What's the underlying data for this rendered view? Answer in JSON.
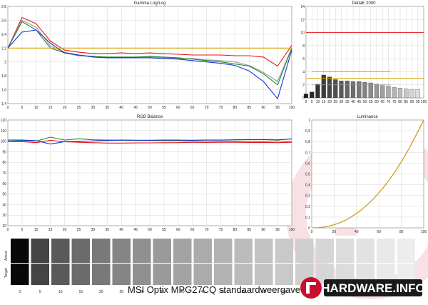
{
  "footer": {
    "title": "MSI Optix MPG27CQ standaardweergave",
    "brand": "HARDWARE.INFO"
  },
  "colors": {
    "red": "#e8141b",
    "green": "#1e8a2a",
    "blue": "#1a34d8",
    "gray": "#9a9a9a",
    "gold": "#d4a000",
    "brand_red": "#c8102e"
  },
  "chart_data": [
    {
      "type": "line",
      "title": "Gamma Log/Log",
      "x": [
        0,
        5,
        10,
        15,
        20,
        25,
        30,
        35,
        40,
        45,
        50,
        55,
        60,
        65,
        70,
        75,
        80,
        85,
        90,
        95,
        100
      ],
      "xticks": [
        0,
        5,
        10,
        15,
        20,
        25,
        30,
        35,
        40,
        45,
        50,
        55,
        60,
        65,
        70,
        75,
        80,
        85,
        90,
        95,
        100
      ],
      "ylim": [
        1.4,
        2.8
      ],
      "yticks": [
        "1,4",
        "1,6",
        "1,8",
        "2",
        "2,2",
        "2,4",
        "2,6",
        "2,8"
      ],
      "grid": true,
      "series": [
        {
          "color": "red",
          "values": [
            2.2,
            2.64,
            2.55,
            2.3,
            2.17,
            2.14,
            2.12,
            2.12,
            2.13,
            2.12,
            2.13,
            2.12,
            2.11,
            2.1,
            2.1,
            2.1,
            2.09,
            2.09,
            2.07,
            1.94,
            2.24
          ]
        },
        {
          "color": "gray",
          "values": [
            2.2,
            2.6,
            2.5,
            2.23,
            2.14,
            2.1,
            2.08,
            2.07,
            2.07,
            2.07,
            2.07,
            2.06,
            2.05,
            2.05,
            2.03,
            2.02,
            2.0,
            1.95,
            1.85,
            1.72,
            2.2
          ]
        },
        {
          "color": "green",
          "values": [
            2.2,
            2.58,
            2.46,
            2.2,
            2.13,
            2.09,
            2.08,
            2.07,
            2.07,
            2.07,
            2.08,
            2.07,
            2.06,
            2.04,
            2.02,
            2.0,
            1.97,
            1.94,
            1.83,
            1.67,
            2.2
          ]
        },
        {
          "color": "blue",
          "values": [
            2.2,
            2.43,
            2.46,
            2.27,
            2.13,
            2.1,
            2.07,
            2.06,
            2.06,
            2.06,
            2.06,
            2.05,
            2.04,
            2.02,
            2.0,
            1.98,
            1.95,
            1.87,
            1.72,
            1.47,
            2.17
          ]
        },
        {
          "color": "gold",
          "values": [
            2.2,
            2.2,
            2.2,
            2.2,
            2.2,
            2.2,
            2.2,
            2.2,
            2.2,
            2.2,
            2.2,
            2.2,
            2.2,
            2.2,
            2.2,
            2.2,
            2.2,
            2.2,
            2.2,
            2.2,
            2.2
          ]
        }
      ]
    },
    {
      "type": "bar",
      "title": "DeltaE 2000",
      "categories": [
        0,
        5,
        10,
        15,
        20,
        25,
        30,
        35,
        40,
        45,
        50,
        55,
        60,
        65,
        70,
        75,
        80,
        85,
        90,
        95,
        100
      ],
      "xticks": [
        0,
        5,
        10,
        15,
        20,
        25,
        30,
        35,
        40,
        45,
        50,
        55,
        60,
        65,
        70,
        75,
        80,
        85,
        90,
        95,
        100
      ],
      "values": [
        0.6,
        0.9,
        2.1,
        3.5,
        3.2,
        2.8,
        2.6,
        2.6,
        2.5,
        2.5,
        2.4,
        2.3,
        2.1,
        1.9,
        1.8,
        1.6,
        1.5,
        1.4,
        1.3,
        1.3,
        0
      ],
      "ylim": [
        0,
        14
      ],
      "yticks": [
        0,
        2,
        4,
        6,
        8,
        10,
        12,
        14
      ],
      "reference_lines": [
        {
          "y": 10,
          "color": "red"
        },
        {
          "y": 3,
          "color": "gold"
        },
        {
          "y": 4,
          "color": "gray"
        },
        {
          "y": 2,
          "color": "gray"
        }
      ],
      "grid": true
    },
    {
      "type": "line",
      "title": "RGB Balance",
      "x": [
        0,
        5,
        10,
        15,
        20,
        25,
        30,
        35,
        40,
        45,
        50,
        55,
        60,
        65,
        70,
        75,
        80,
        85,
        90,
        95,
        100
      ],
      "xticks": [
        0,
        5,
        10,
        15,
        20,
        25,
        30,
        35,
        40,
        45,
        50,
        55,
        60,
        65,
        70,
        75,
        80,
        85,
        90,
        95,
        100
      ],
      "ylim": [
        20,
        120
      ],
      "yticks": [
        20,
        30,
        40,
        50,
        60,
        70,
        80,
        90,
        100,
        110,
        120
      ],
      "grid": true,
      "series": [
        {
          "color": "red",
          "values": [
            99.5,
            99.5,
            98.6,
            100.8,
            99.4,
            98.9,
            98.5,
            98.2,
            98.2,
            98.3,
            98.4,
            98.5,
            98.6,
            98.9,
            98.8,
            98.9,
            98.9,
            98.8,
            98.8,
            98.6,
            98.9
          ]
        },
        {
          "color": "green",
          "values": [
            99.8,
            100.5,
            100.1,
            103.8,
            101.1,
            102.2,
            101.3,
            101.0,
            100.9,
            100.7,
            100.6,
            100.4,
            100.4,
            100.3,
            100.1,
            100.0,
            99.9,
            99.9,
            99.8,
            100.3,
            99.4
          ]
        },
        {
          "color": "blue",
          "values": [
            101.0,
            101.0,
            100.5,
            97.2,
            99.5,
            99.8,
            100.2,
            100.6,
            101.0,
            100.9,
            100.9,
            101.0,
            101.0,
            100.9,
            101.0,
            101.0,
            101.3,
            101.5,
            101.5,
            101.2,
            102.0
          ]
        }
      ]
    },
    {
      "type": "line",
      "title": "Luminance",
      "x": [
        0,
        5,
        10,
        15,
        20,
        25,
        30,
        35,
        40,
        45,
        50,
        55,
        60,
        65,
        70,
        75,
        80,
        85,
        90,
        95,
        100
      ],
      "xticks": [
        0,
        20,
        40,
        60,
        80,
        100
      ],
      "ylim": [
        0,
        1
      ],
      "yticks": [
        "0",
        "0,1",
        "0,2",
        "0,3",
        "0,4",
        "0,5",
        "0,6",
        "0,7",
        "0,8",
        "0,9",
        "1"
      ],
      "grid": true,
      "series": [
        {
          "color": "gray",
          "values": [
            0,
            0.001,
            0.006,
            0.015,
            0.029,
            0.047,
            0.071,
            0.1,
            0.133,
            0.173,
            0.217,
            0.268,
            0.325,
            0.387,
            0.456,
            0.531,
            0.613,
            0.701,
            0.796,
            0.898,
            1.0
          ]
        },
        {
          "color": "gold",
          "values": [
            0,
            0.0014,
            0.0063,
            0.0154,
            0.029,
            0.0474,
            0.0707,
            0.0989,
            0.1332,
            0.1726,
            0.2176,
            0.2683,
            0.325,
            0.3871,
            0.456,
            0.531,
            0.6121,
            0.6999,
            0.7945,
            0.8949,
            1.0
          ]
        }
      ]
    }
  ],
  "grayscale_strip": {
    "label_actual": "Actual",
    "label_target": "Target",
    "levels": [
      0,
      5,
      10,
      15,
      20,
      25,
      30,
      35,
      40,
      45,
      50,
      55,
      60,
      65,
      70,
      75,
      80,
      85,
      90,
      95,
      100
    ],
    "shown_labels": [
      "0",
      "5",
      "10",
      "15",
      "20",
      "25",
      "30",
      "35",
      "40",
      "45",
      "50",
      "55",
      "60",
      "65",
      "70"
    ]
  }
}
